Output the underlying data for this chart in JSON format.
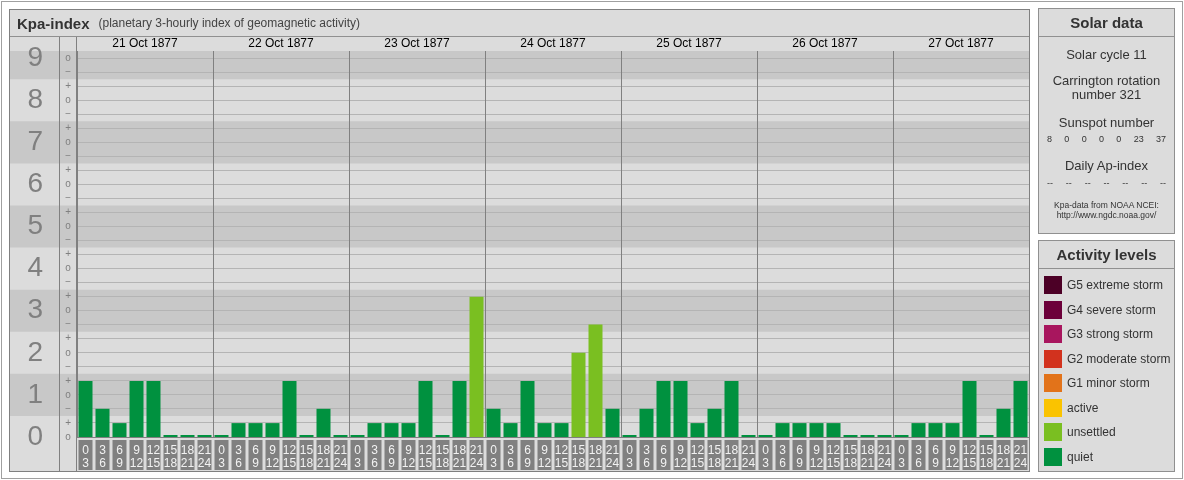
{
  "chart_data": [
    {
      "type": "bar",
      "title": "Kpa-index",
      "subtitle": "(planetary 3-hourly index of geomagnetic activity)",
      "categories": [
        "0\n3",
        "3\n6",
        "6\n9",
        "9\n12",
        "12\n15",
        "15\n18",
        "18\n21",
        "21\n24",
        "0\n3",
        "3\n6",
        "6\n9",
        "9\n12",
        "12\n15",
        "15\n18",
        "18\n21",
        "21\n24",
        "0\n3",
        "3\n6",
        "6\n9",
        "9\n12",
        "12\n15",
        "15\n18",
        "18\n21",
        "21\n24",
        "0\n3",
        "3\n6",
        "6\n9",
        "9\n12",
        "12\n15",
        "15\n18",
        "18\n21",
        "21\n24",
        "0\n3",
        "3\n6",
        "6\n9",
        "9\n12",
        "12\n15",
        "15\n18",
        "18\n21",
        "21\n24",
        "0\n3",
        "3\n6",
        "6\n9",
        "9\n12",
        "12\n15",
        "15\n18",
        "18\n21",
        "21\n24",
        "0\n3",
        "3\n6",
        "6\n9",
        "9\n12",
        "12\n15",
        "15\n18",
        "18\n21",
        "21\n24"
      ],
      "series": [
        {
          "name": "G5 extreme storm",
          "color": "#4c0026",
          "values": [
            null,
            null,
            null,
            null,
            null,
            null,
            null,
            null,
            null,
            null,
            null,
            null,
            null,
            null,
            null,
            null,
            null,
            null,
            null,
            null,
            null,
            null,
            null,
            null,
            null,
            null,
            null,
            null,
            null,
            null,
            null,
            null,
            null,
            null,
            null,
            null,
            null,
            null,
            null,
            null,
            null,
            null,
            null,
            null,
            null,
            null,
            null,
            null,
            null,
            null,
            null,
            null,
            null,
            null,
            null,
            null
          ]
        },
        {
          "name": "G4 severe storm",
          "color": "#6c003a",
          "values": [
            null,
            null,
            null,
            null,
            null,
            null,
            null,
            null,
            null,
            null,
            null,
            null,
            null,
            null,
            null,
            null,
            null,
            null,
            null,
            null,
            null,
            null,
            null,
            null,
            null,
            null,
            null,
            null,
            null,
            null,
            null,
            null,
            null,
            null,
            null,
            null,
            null,
            null,
            null,
            null,
            null,
            null,
            null,
            null,
            null,
            null,
            null,
            null,
            null,
            null,
            null,
            null,
            null,
            null,
            null,
            null
          ]
        },
        {
          "name": "G3 strong storm",
          "color": "#a8165e",
          "values": [
            null,
            null,
            null,
            null,
            null,
            null,
            null,
            null,
            null,
            null,
            null,
            null,
            null,
            null,
            null,
            null,
            null,
            null,
            null,
            null,
            null,
            null,
            null,
            null,
            null,
            null,
            null,
            null,
            null,
            null,
            null,
            null,
            null,
            null,
            null,
            null,
            null,
            null,
            null,
            null,
            null,
            null,
            null,
            null,
            null,
            null,
            null,
            null,
            null,
            null,
            null,
            null,
            null,
            null,
            null,
            null
          ]
        },
        {
          "name": "G2 moderate storm",
          "color": "#d2321e",
          "values": [
            null,
            null,
            null,
            null,
            null,
            null,
            null,
            null,
            null,
            null,
            null,
            null,
            null,
            null,
            null,
            null,
            null,
            null,
            null,
            null,
            null,
            null,
            null,
            null,
            null,
            null,
            null,
            null,
            null,
            null,
            null,
            null,
            null,
            null,
            null,
            null,
            null,
            null,
            null,
            null,
            null,
            null,
            null,
            null,
            null,
            null,
            null,
            null,
            null,
            null,
            null,
            null,
            null,
            null,
            null,
            null
          ]
        },
        {
          "name": "G1 minor storm",
          "color": "#e2731a",
          "values": [
            null,
            null,
            null,
            null,
            null,
            null,
            null,
            null,
            null,
            null,
            null,
            null,
            null,
            null,
            null,
            null,
            null,
            null,
            null,
            null,
            null,
            null,
            null,
            null,
            null,
            null,
            null,
            null,
            null,
            null,
            null,
            null,
            null,
            null,
            null,
            null,
            null,
            null,
            null,
            null,
            null,
            null,
            null,
            null,
            null,
            null,
            null,
            null,
            null,
            null,
            null,
            null,
            null,
            null,
            null,
            null
          ]
        },
        {
          "name": "active",
          "color": "#fac300",
          "values": [
            null,
            null,
            null,
            null,
            null,
            null,
            null,
            null,
            null,
            null,
            null,
            null,
            null,
            null,
            null,
            null,
            null,
            null,
            null,
            null,
            null,
            null,
            null,
            null,
            null,
            null,
            null,
            null,
            null,
            null,
            null,
            null,
            null,
            null,
            null,
            null,
            null,
            null,
            null,
            null,
            null,
            null,
            null,
            null,
            null,
            null,
            null,
            null,
            null,
            null,
            null,
            null,
            null,
            null,
            null,
            null
          ]
        },
        {
          "name": "unsettled",
          "color": "#7abf21",
          "values": [
            null,
            null,
            null,
            null,
            null,
            null,
            null,
            null,
            null,
            null,
            null,
            null,
            null,
            null,
            null,
            null,
            null,
            null,
            null,
            null,
            null,
            null,
            null,
            3.33,
            null,
            null,
            null,
            null,
            null,
            2,
            2.67,
            null,
            null,
            null,
            null,
            null,
            null,
            null,
            null,
            null,
            null,
            null,
            null,
            null,
            null,
            null,
            null,
            null,
            null,
            null,
            null,
            null,
            null,
            null,
            null,
            null
          ]
        },
        {
          "name": "quiet",
          "color": "#00913f",
          "values": [
            1.33,
            0.67,
            0.33,
            1.33,
            1.33,
            0,
            0,
            0,
            0,
            0.33,
            0.33,
            0.33,
            1.33,
            0,
            0.67,
            0,
            0,
            0.33,
            0.33,
            0.33,
            1.33,
            0,
            1.33,
            null,
            0.67,
            0.33,
            1.33,
            0.33,
            0.33,
            null,
            null,
            0.67,
            0,
            0.67,
            1.33,
            1.33,
            0.33,
            0.67,
            1.33,
            0,
            0,
            0.33,
            0.33,
            0.33,
            0.33,
            0,
            0,
            0,
            0,
            0.33,
            0.33,
            0.33,
            1.33,
            0,
            0.67,
            1.33
          ]
        }
      ],
      "ylim": [
        0,
        9.17
      ],
      "yticks": [
        0,
        1,
        2,
        3,
        4,
        5,
        6,
        7,
        8,
        9
      ],
      "y2_categories": [
        "o",
        "−",
        "+",
        "o",
        "−",
        "+",
        "o",
        "−",
        "+",
        "o",
        "−",
        "+",
        "o",
        "−",
        "+",
        "o",
        "−",
        "+",
        "o",
        "−",
        "+",
        "o",
        "−",
        "+",
        "o",
        "−",
        "+",
        "o"
      ],
      "x2lim": [
        "1877-10-21",
        "1877-10-28"
      ],
      "x2ticks": [
        {
          "value": "1877-10-21T12:00",
          "label": "21 Oct 1877"
        },
        {
          "value": "1877-10-22T12:00",
          "label": "22 Oct 1877"
        },
        {
          "value": "1877-10-23T12:00",
          "label": "23 Oct 1877"
        },
        {
          "value": "1877-10-24T12:00",
          "label": "24 Oct 1877"
        },
        {
          "value": "1877-10-25T12:00",
          "label": "25 Oct 1877"
        },
        {
          "value": "1877-10-26T12:00",
          "label": "26 Oct 1877"
        },
        {
          "value": "1877-10-27T12:00",
          "label": "27 Oct 1877"
        }
      ],
      "bands": [
        {
          "axis": "y",
          "from": 0.5,
          "to": 1.5,
          "color": "#c8c8c8"
        },
        {
          "axis": "y",
          "from": 2.5,
          "to": 3.5,
          "color": "#c8c8c8"
        },
        {
          "axis": "y",
          "from": 4.5,
          "to": 5.5,
          "color": "#c8c8c8"
        },
        {
          "axis": "y",
          "from": 6.5,
          "to": 7.5,
          "color": "#c8c8c8"
        },
        {
          "axis": "y",
          "from": 8.5,
          "to": 9.17,
          "color": "#c8c8c8"
        }
      ],
      "grid": true,
      "legend": "right",
      "legend_title": "Activity levels"
    },
    {
      "type": "other",
      "title": "Solar data",
      "annotations": [
        "Solar cycle 11",
        "Carrington rotation number 321",
        "Sunspot number",
        "8 0 0 0 0 23 37",
        "Daily Ap-index",
        "-- -- -- -- -- -- --",
        "Kpa-data from NOAA NCEI: http://www.ngdc.noaa.gov/"
      ]
    }
  ]
}
